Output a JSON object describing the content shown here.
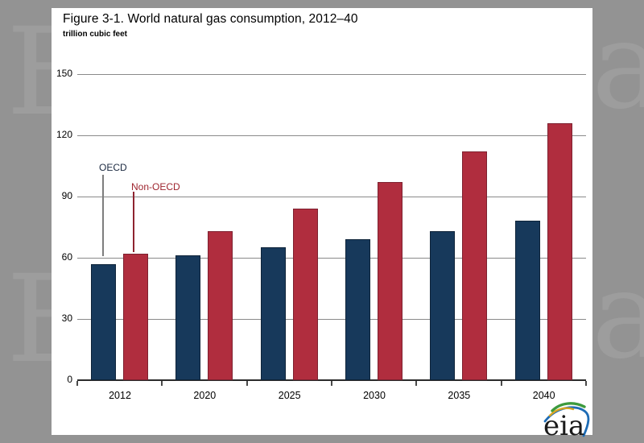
{
  "chart_data": {
    "type": "bar",
    "title": "Figure 3-1. World natural gas consumption, 2012–40",
    "subtitle": "trillion cubic feet",
    "categories": [
      "2012",
      "2020",
      "2025",
      "2030",
      "2035",
      "2040"
    ],
    "series": [
      {
        "name": "OECD",
        "color": "#17395B",
        "border_color": "#0E2339",
        "label_color": "#1B2940",
        "values": [
          57,
          61,
          65,
          69,
          73,
          78
        ]
      },
      {
        "name": "Non-OECD",
        "color": "#B02D3E",
        "border_color": "#7E2130",
        "label_color": "#9E242E",
        "values": [
          62,
          73,
          84,
          97,
          112,
          126
        ]
      }
    ],
    "xlabel": "",
    "ylabel": "trillion cubic feet",
    "ylim": [
      0,
      150
    ],
    "yticks": [
      0,
      30,
      60,
      90,
      120,
      150
    ],
    "grid": true,
    "legend_position": "in-plot annotated labels with leader lines to 2012 bars"
  },
  "logo": {
    "text": "eia"
  },
  "frame": {
    "background_color": "#939393",
    "watermark_color": "#9D9D9D",
    "watermark_left_letter": "E",
    "watermark_right_letter": "a"
  }
}
